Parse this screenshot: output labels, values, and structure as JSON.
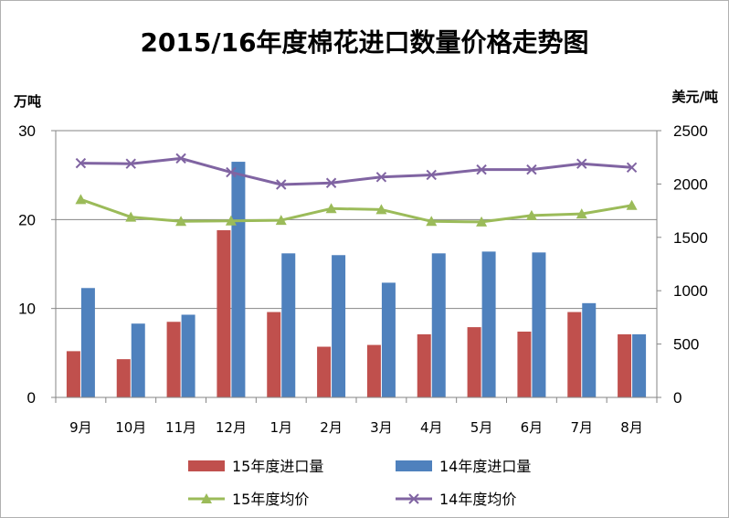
{
  "chart_data": {
    "type": "bar",
    "title": "2015/16年度棉花进口数量价格走势图",
    "ylabel_left": "万吨",
    "ylabel_right": "美元/吨",
    "categories": [
      "9月",
      "10月",
      "11月",
      "12月",
      "1月",
      "2月",
      "3月",
      "4月",
      "5月",
      "6月",
      "7月",
      "8月"
    ],
    "y_left": {
      "lim": [
        0,
        30
      ],
      "ticks": [
        "0",
        "10",
        "20",
        "30"
      ]
    },
    "y_right": {
      "lim": [
        0,
        2500
      ],
      "ticks": [
        "0",
        "500",
        "1000",
        "1500",
        "2000",
        "2500"
      ]
    },
    "series": [
      {
        "name": "15年度进口量",
        "type": "bar",
        "axis": "left",
        "color": "#c0504d",
        "values": [
          5.2,
          4.3,
          8.5,
          18.8,
          9.6,
          5.7,
          5.9,
          7.1,
          7.9,
          7.4,
          9.6,
          7.1
        ]
      },
      {
        "name": "14年度进口量",
        "type": "bar",
        "axis": "left",
        "color": "#4f81bd",
        "values": [
          12.3,
          8.3,
          9.3,
          26.5,
          16.2,
          16.0,
          12.9,
          16.2,
          16.4,
          16.3,
          10.6,
          7.1
        ]
      },
      {
        "name": "15年度均价",
        "type": "line",
        "axis": "right",
        "color": "#9bbb59",
        "marker": "triangle",
        "values": [
          1855,
          1690,
          1650,
          1655,
          1660,
          1770,
          1760,
          1650,
          1645,
          1705,
          1720,
          1800
        ]
      },
      {
        "name": "14年度均价",
        "type": "line",
        "axis": "right",
        "color": "#8064a2",
        "marker": "x",
        "values": [
          2195,
          2190,
          2240,
          2110,
          1995,
          2010,
          2065,
          2085,
          2135,
          2135,
          2190,
          2155
        ]
      }
    ],
    "legend_position": "bottom",
    "grid": "horizontal"
  }
}
